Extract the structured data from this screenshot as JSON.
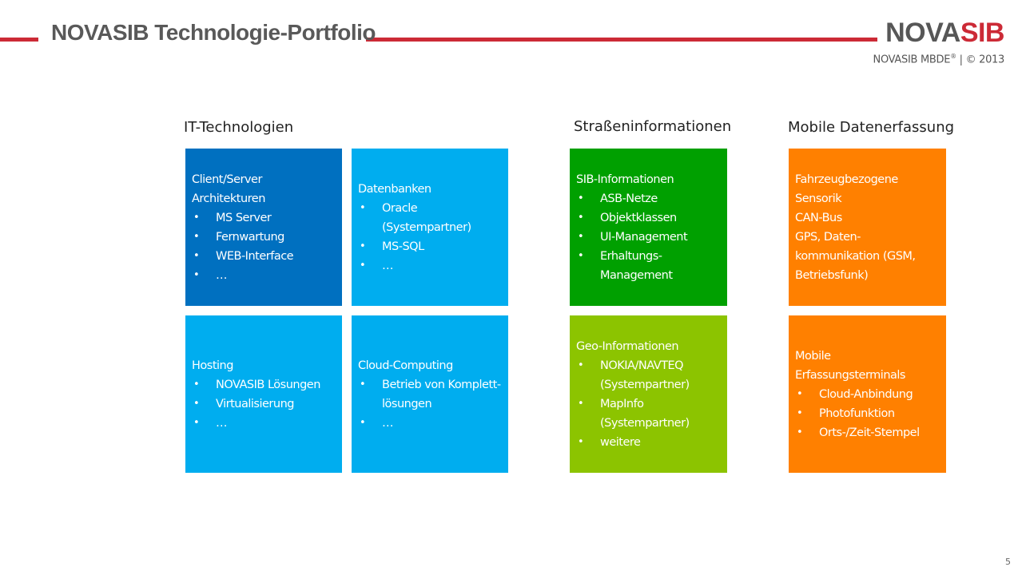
{
  "header": {
    "title": "NOVASIB Technologie-Portfolio",
    "logo_part1": "NOVA",
    "logo_part2": "SIB",
    "subtitle_prefix": "NOVASIB MBDE",
    "subtitle_reg": "®",
    "subtitle_suffix": " | © 2013"
  },
  "columns": [
    {
      "heading": "IT-Technologien"
    },
    {
      "heading": "Straßeninformationen"
    },
    {
      "heading": "Mobile Datenerfassung"
    }
  ],
  "colors": {
    "accent_red": "#cc2a36",
    "tile_dark_blue": "#0070c0",
    "tile_light_blue": "#00adef",
    "tile_dark_green": "#00a000",
    "tile_light_green": "#8cc400",
    "tile_orange": "#ff8000"
  },
  "tiles": [
    {
      "title": "Client/Server Architekturen",
      "items": [
        "MS Server",
        "Fernwartung",
        "WEB-Interface",
        "…"
      ]
    },
    {
      "title": "Datenbanken",
      "items": [
        "Oracle (Systempartner)",
        "MS-SQL",
        "…"
      ]
    },
    {
      "title": "SIB-Informationen",
      "items": [
        "ASB-Netze",
        "Objektklassen",
        "UI-Management",
        "Erhaltungs-Management"
      ]
    },
    {
      "title": "Fahrzeugbezogene Sensorik\nCAN-Bus\nGPS, Daten-kommunikation (GSM, Betriebsfunk)",
      "items": []
    },
    {
      "title": "Hosting",
      "items": [
        "NOVASIB Lösungen",
        "Virtualisierung",
        "…"
      ]
    },
    {
      "title": "Cloud-Computing",
      "items": [
        "Betrieb von Komplett-lösungen",
        "…"
      ]
    },
    {
      "title": "Geo-Informationen",
      "items": [
        "NOKIA/NAVTEQ (Systempartner)",
        "MapInfo (Systempartner)",
        "weitere"
      ]
    },
    {
      "title": "Mobile Erfassungsterminals",
      "items": [
        "Cloud-Anbindung",
        "Photofunktion",
        "Orts-/Zeit-Stempel"
      ]
    }
  ],
  "footer": {
    "page_number": "5"
  }
}
